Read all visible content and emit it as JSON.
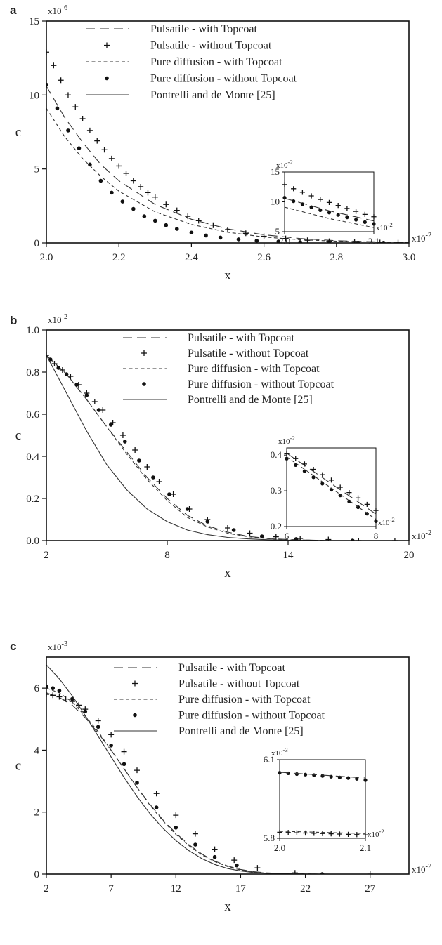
{
  "chart_data": [
    {
      "panel": "a",
      "type": "line",
      "xlabel": "x",
      "ylabel": "c",
      "x_multiplier": "x10-2",
      "y_multiplier": "x10-6",
      "xlim": [
        2.0,
        3.0
      ],
      "ylim": [
        0,
        15
      ],
      "xticks": [
        2.0,
        2.2,
        2.4,
        2.6,
        2.8,
        3.0
      ],
      "xtick_labels": [
        "2.0",
        "2.2",
        "2.4",
        "2.6",
        "2.8",
        "3.0"
      ],
      "yticks": [
        0,
        5,
        10,
        15
      ],
      "ytick_labels": [
        "0",
        "5",
        "10",
        "15"
      ],
      "legend_position": "top-right",
      "grid": false,
      "series": [
        {
          "name": "Pulsatile - with Topcoat",
          "style": "longdash",
          "x": [
            2.0,
            2.05,
            2.1,
            2.15,
            2.2,
            2.3,
            2.4,
            2.5,
            2.6,
            2.7,
            2.8,
            2.9,
            3.0
          ],
          "y": [
            10.6,
            8.5,
            6.8,
            5.3,
            4.2,
            2.6,
            1.6,
            0.95,
            0.55,
            0.3,
            0.15,
            0.08,
            0.04
          ]
        },
        {
          "name": "Pulsatile - without Topcoat",
          "style": "plus",
          "x": [
            2.0,
            2.02,
            2.04,
            2.06,
            2.08,
            2.1,
            2.12,
            2.14,
            2.16,
            2.18,
            2.2,
            2.22,
            2.24,
            2.26,
            2.28,
            2.3,
            2.33,
            2.36,
            2.39,
            2.42,
            2.46,
            2.5,
            2.55,
            2.6,
            2.66,
            2.72,
            2.78,
            2.85,
            2.92,
            2.97
          ],
          "y": [
            12.9,
            12.0,
            11.0,
            10.0,
            9.2,
            8.4,
            7.6,
            6.9,
            6.3,
            5.7,
            5.2,
            4.7,
            4.2,
            3.8,
            3.4,
            3.1,
            2.6,
            2.2,
            1.8,
            1.5,
            1.2,
            0.9,
            0.65,
            0.45,
            0.3,
            0.18,
            0.11,
            0.06,
            0.03,
            0.02
          ]
        },
        {
          "name": "Pure diffusion - with Topcoat",
          "style": "shortdash",
          "x": [
            2.0,
            2.05,
            2.1,
            2.15,
            2.2,
            2.3,
            2.4,
            2.5,
            2.6,
            2.7,
            2.8,
            2.9,
            3.0
          ],
          "y": [
            9.1,
            7.2,
            5.7,
            4.5,
            3.5,
            2.1,
            1.25,
            0.72,
            0.4,
            0.22,
            0.12,
            0.06,
            0.03
          ]
        },
        {
          "name": "Pure diffusion - without Topcoat",
          "style": "dot",
          "x": [
            2.0,
            2.03,
            2.06,
            2.09,
            2.12,
            2.15,
            2.18,
            2.21,
            2.24,
            2.27,
            2.3,
            2.33,
            2.36,
            2.4,
            2.44,
            2.48,
            2.53,
            2.58,
            2.64,
            2.7,
            2.78,
            2.86,
            2.93
          ],
          "y": [
            10.7,
            9.1,
            7.6,
            6.4,
            5.3,
            4.2,
            3.4,
            2.8,
            2.3,
            1.8,
            1.5,
            1.2,
            0.95,
            0.7,
            0.5,
            0.36,
            0.24,
            0.15,
            0.09,
            0.05,
            0.03,
            0.01,
            0.01
          ]
        },
        {
          "name": "Pontrelli and de Monte [25]",
          "style": "solid",
          "x": [
            2.0,
            3.0
          ],
          "y": [
            0,
            0
          ]
        }
      ],
      "inset": {
        "x_multiplier": "x10-2",
        "y_multiplier": "x10-2",
        "xlim": [
          2.0,
          2.1
        ],
        "ylim": [
          5,
          15
        ],
        "xticks": [
          2.0,
          2.1
        ],
        "xtick_labels": [
          "2.0",
          "2.1"
        ],
        "yticks": [
          5,
          10,
          15
        ],
        "ytick_labels": [
          "5",
          "10",
          "15"
        ],
        "series": [
          {
            "style": "plus",
            "x": [
              2.0,
              2.01,
              2.02,
              2.03,
              2.04,
              2.05,
              2.06,
              2.07,
              2.08,
              2.09,
              2.1
            ],
            "y": [
              12.9,
              12.2,
              11.6,
              11.0,
              10.4,
              9.9,
              9.4,
              8.9,
              8.4,
              7.9,
              7.5
            ]
          },
          {
            "style": "longdash",
            "x": [
              2.0,
              2.05,
              2.1
            ],
            "y": [
              10.6,
              8.5,
              6.8
            ]
          },
          {
            "style": "dot",
            "x": [
              2.0,
              2.01,
              2.02,
              2.03,
              2.04,
              2.05,
              2.06,
              2.07,
              2.08,
              2.09,
              2.1
            ],
            "y": [
              10.7,
              10.1,
              9.6,
              9.1,
              8.6,
              8.2,
              7.8,
              7.4,
              7.0,
              6.6,
              6.3
            ]
          },
          {
            "style": "shortdash",
            "x": [
              2.0,
              2.05,
              2.1
            ],
            "y": [
              9.1,
              7.2,
              5.7
            ]
          }
        ]
      }
    },
    {
      "panel": "b",
      "type": "line",
      "xlabel": "x",
      "ylabel": "c",
      "x_multiplier": "x10-2",
      "y_multiplier": "x10-2",
      "xlim": [
        2,
        20
      ],
      "ylim": [
        0,
        1.0
      ],
      "xticks": [
        2,
        8,
        14,
        20
      ],
      "xtick_labels": [
        "2",
        "8",
        "14",
        "20"
      ],
      "yticks": [
        0,
        0.2,
        0.4,
        0.6,
        0.8,
        1.0
      ],
      "ytick_labels": [
        "0.0",
        "0.2",
        "0.4",
        "0.6",
        "0.8",
        "1.0"
      ],
      "legend_position": "top-right",
      "grid": false,
      "series": [
        {
          "name": "Pulsatile - with Topcoat",
          "style": "longdash",
          "x": [
            2,
            3,
            4,
            5,
            6,
            7,
            8,
            9,
            10,
            11,
            12,
            13,
            14,
            16,
            18,
            20
          ],
          "y": [
            0.88,
            0.79,
            0.67,
            0.54,
            0.42,
            0.3,
            0.2,
            0.12,
            0.07,
            0.04,
            0.02,
            0.01,
            0.005,
            0.0,
            0.0,
            0.0
          ]
        },
        {
          "name": "Pulsatile - without Topcoat",
          "style": "plus",
          "x": [
            2,
            2.4,
            2.8,
            3.2,
            3.6,
            4.0,
            4.4,
            4.8,
            5.3,
            5.8,
            6.4,
            7.0,
            7.6,
            8.3,
            9.1,
            10.0,
            11.0,
            12.1,
            13.4,
            14.6,
            16.0,
            17.5,
            19.3
          ],
          "y": [
            0.88,
            0.84,
            0.81,
            0.78,
            0.74,
            0.7,
            0.66,
            0.62,
            0.56,
            0.5,
            0.43,
            0.35,
            0.28,
            0.22,
            0.15,
            0.1,
            0.06,
            0.035,
            0.018,
            0.01,
            0.005,
            0.0,
            0.0
          ]
        },
        {
          "name": "Pure diffusion - with Topcoat",
          "style": "shortdash",
          "x": [
            2,
            3,
            4,
            5,
            6,
            7,
            8,
            9,
            10,
            11,
            12,
            13,
            14,
            16,
            18,
            20
          ],
          "y": [
            0.88,
            0.79,
            0.67,
            0.54,
            0.41,
            0.29,
            0.19,
            0.11,
            0.065,
            0.035,
            0.018,
            0.009,
            0.004,
            0.0,
            0.0,
            0.0
          ]
        },
        {
          "name": "Pure diffusion - without Topcoat",
          "style": "dot",
          "x": [
            2.2,
            2.6,
            3.0,
            3.5,
            4.0,
            4.6,
            5.2,
            5.9,
            6.6,
            7.3,
            8.1,
            9.0,
            10.0,
            11.3,
            12.7,
            14.4,
            17.2
          ],
          "y": [
            0.86,
            0.82,
            0.79,
            0.74,
            0.69,
            0.62,
            0.55,
            0.47,
            0.38,
            0.3,
            0.22,
            0.15,
            0.09,
            0.05,
            0.02,
            0.007,
            0.0
          ]
        },
        {
          "name": "Pontrelli and de Monte [25]",
          "style": "solid",
          "x": [
            2,
            3,
            4,
            5,
            6,
            7,
            8,
            9,
            10,
            11,
            12,
            13,
            14,
            16,
            18,
            20
          ],
          "y": [
            0.88,
            0.7,
            0.52,
            0.36,
            0.24,
            0.15,
            0.09,
            0.05,
            0.028,
            0.015,
            0.008,
            0.004,
            0.002,
            0.0,
            0.0,
            0.0
          ]
        }
      ],
      "inset": {
        "x_multiplier": "x10-2",
        "y_multiplier": "x10-2",
        "xlim": [
          6,
          8
        ],
        "ylim": [
          0.2,
          0.42
        ],
        "xticks": [
          6,
          8
        ],
        "xtick_labels": [
          "6",
          "8"
        ],
        "yticks": [
          0.2,
          0.3,
          0.4
        ],
        "ytick_labels": [
          "0.2",
          "0.3",
          "0.4"
        ],
        "series": [
          {
            "style": "plus",
            "x": [
              6,
              6.2,
              6.4,
              6.6,
              6.8,
              7.0,
              7.2,
              7.4,
              7.6,
              7.8,
              8.0
            ],
            "y": [
              0.405,
              0.39,
              0.375,
              0.36,
              0.345,
              0.33,
              0.31,
              0.295,
              0.28,
              0.262,
              0.245
            ]
          },
          {
            "style": "longdash",
            "x": [
              6,
              8
            ],
            "y": [
              0.405,
              0.235
            ]
          },
          {
            "style": "dot",
            "x": [
              6,
              6.2,
              6.4,
              6.6,
              6.8,
              7.0,
              7.2,
              7.4,
              7.6,
              7.8,
              8.0
            ],
            "y": [
              0.39,
              0.372,
              0.355,
              0.338,
              0.32,
              0.303,
              0.287,
              0.27,
              0.254,
              0.236,
              0.215
            ]
          },
          {
            "style": "shortdash",
            "x": [
              6,
              8
            ],
            "y": [
              0.395,
              0.22
            ]
          }
        ]
      }
    },
    {
      "panel": "c",
      "type": "line",
      "xlabel": "x",
      "ylabel": "c",
      "x_multiplier": "x10-2",
      "y_multiplier": "x10-3",
      "xlim": [
        2,
        30
      ],
      "ylim": [
        0,
        7
      ],
      "xticks": [
        2,
        7,
        12,
        17,
        22,
        27
      ],
      "xtick_labels": [
        "2",
        "7",
        "12",
        "17",
        "22",
        "27"
      ],
      "yticks": [
        0,
        2,
        4,
        6
      ],
      "ytick_labels": [
        "0",
        "2",
        "4",
        "6"
      ],
      "legend_position": "top-right",
      "grid": false,
      "series": [
        {
          "name": "Pulsatile - with Topcoat",
          "style": "longdash",
          "x": [
            2,
            3,
            4,
            5,
            6,
            7,
            8,
            9,
            10,
            11,
            12,
            13,
            14,
            15,
            16,
            17,
            18,
            19,
            20,
            21,
            22,
            23,
            24
          ],
          "y": [
            5.85,
            5.7,
            5.45,
            5.05,
            4.55,
            4.0,
            3.4,
            2.8,
            2.25,
            1.75,
            1.32,
            0.95,
            0.65,
            0.42,
            0.26,
            0.15,
            0.08,
            0.04,
            0.02,
            0.01,
            0.005,
            0.002,
            0.0
          ]
        },
        {
          "name": "Pulsatile - without Topcoat",
          "style": "plus",
          "x": [
            2,
            2.5,
            3,
            3.5,
            4,
            4.5,
            5,
            6,
            7,
            8,
            9,
            10.5,
            12,
            13.5,
            15,
            16.5,
            18.3,
            21.2,
            27
          ],
          "y": [
            5.8,
            5.77,
            5.72,
            5.65,
            5.57,
            5.45,
            5.32,
            4.95,
            4.5,
            3.95,
            3.35,
            2.6,
            1.9,
            1.3,
            0.8,
            0.45,
            0.2,
            0.04,
            0.0
          ]
        },
        {
          "name": "Pure diffusion - with Topcoat",
          "style": "shortdash",
          "x": [
            2,
            3,
            4,
            5,
            6,
            7,
            8,
            9,
            10,
            11,
            12,
            13,
            14,
            15,
            16,
            17,
            18,
            19,
            20,
            21,
            22,
            23,
            24
          ],
          "y": [
            6.0,
            5.85,
            5.55,
            5.1,
            4.6,
            4.0,
            3.4,
            2.8,
            2.22,
            1.72,
            1.28,
            0.92,
            0.62,
            0.4,
            0.24,
            0.13,
            0.07,
            0.03,
            0.015,
            0.006,
            0.002,
            0.001,
            0.0
          ]
        },
        {
          "name": "Pure diffusion - without Topcoat",
          "style": "dot",
          "x": [
            2,
            2.5,
            3,
            4,
            5,
            6,
            7,
            8,
            9,
            10.5,
            12,
            13.5,
            15,
            16.7,
            23.3
          ],
          "y": [
            6.05,
            6.0,
            5.92,
            5.65,
            5.25,
            4.75,
            4.15,
            3.55,
            2.95,
            2.15,
            1.5,
            0.95,
            0.55,
            0.28,
            0.0
          ]
        },
        {
          "name": "Pontrelli and de Monte [25]",
          "style": "solid",
          "x": [
            2,
            3,
            4,
            5,
            6,
            7,
            8,
            9,
            10,
            11,
            12,
            13,
            14,
            15,
            16,
            17,
            18,
            19,
            20,
            21,
            22,
            23,
            24
          ],
          "y": [
            6.75,
            6.3,
            5.75,
            5.12,
            4.45,
            3.78,
            3.12,
            2.5,
            1.95,
            1.48,
            1.08,
            0.76,
            0.5,
            0.31,
            0.18,
            0.1,
            0.05,
            0.025,
            0.012,
            0.005,
            0.002,
            0.001,
            0.0
          ]
        }
      ],
      "inset": {
        "x_multiplier": "x10-2",
        "y_multiplier": "x10-3",
        "xlim": [
          2.0,
          2.1
        ],
        "ylim": [
          5.8,
          6.1
        ],
        "xticks": [
          2.0,
          2.1
        ],
        "xtick_labels": [
          "2.0",
          "2.1"
        ],
        "yticks": [
          5.8,
          6.1
        ],
        "ytick_labels": [
          "5.8",
          "6.1"
        ],
        "series": [
          {
            "style": "dot",
            "x": [
              2.0,
              2.01,
              2.02,
              2.03,
              2.04,
              2.05,
              2.06,
              2.07,
              2.08,
              2.09,
              2.1
            ],
            "y": [
              6.05,
              6.048,
              6.045,
              6.043,
              6.041,
              6.038,
              6.035,
              6.032,
              6.03,
              6.027,
              6.022
            ]
          },
          {
            "style": "longdash",
            "x": [
              2.0,
              2.1
            ],
            "y": [
              6.052,
              6.03
            ]
          },
          {
            "style": "plus",
            "x": [
              2.0,
              2.01,
              2.02,
              2.03,
              2.04,
              2.05,
              2.06,
              2.07,
              2.08,
              2.09,
              2.1
            ],
            "y": [
              5.823,
              5.822,
              5.821,
              5.82,
              5.819,
              5.818,
              5.817,
              5.816,
              5.815,
              5.814,
              5.813
            ]
          },
          {
            "style": "shortdash",
            "x": [
              2.0,
              2.1
            ],
            "y": [
              5.827,
              5.818
            ]
          }
        ]
      }
    }
  ]
}
